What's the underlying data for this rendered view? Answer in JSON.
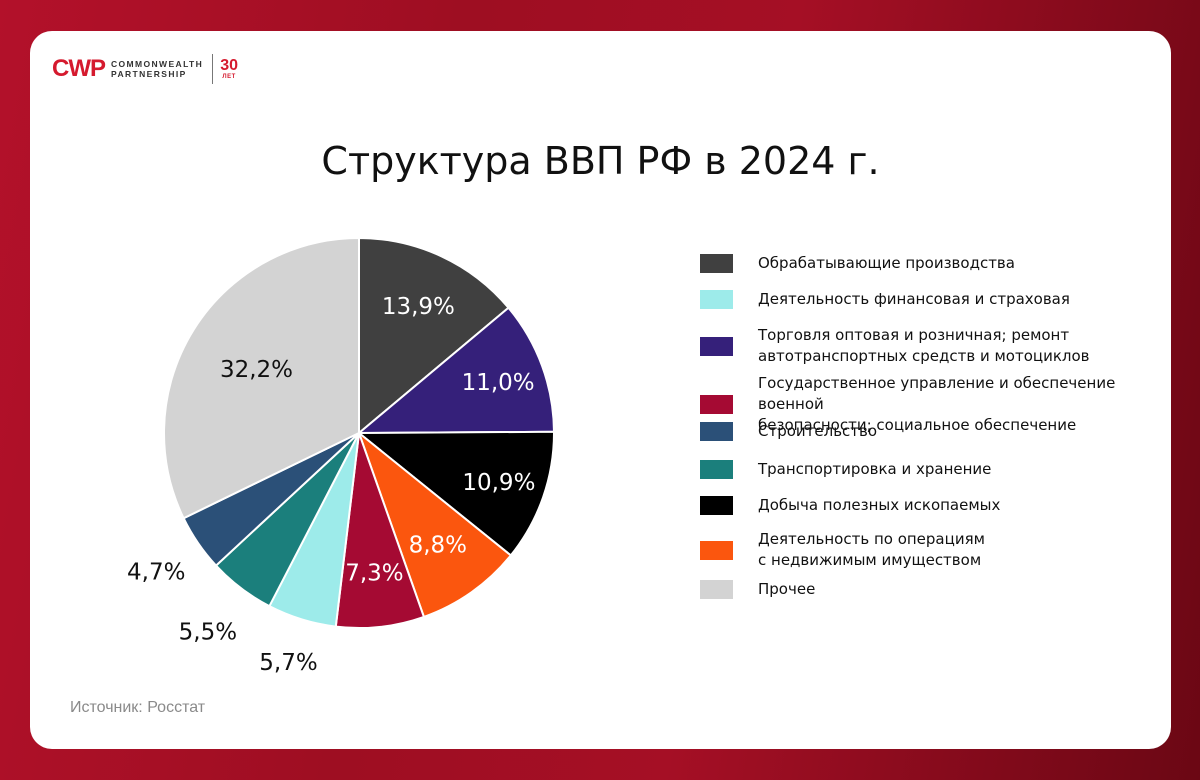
{
  "brand": {
    "mark": "CWP",
    "name_line1": "COMMONWEALTH",
    "name_line2": "PARTNERSHIP",
    "years": "30",
    "years_unit": "ЛЕТ"
  },
  "source": "Источник: Росстат",
  "chart_data": {
    "type": "pie",
    "title": "Структура ВВП РФ в 2024 г.",
    "legend_position": "right",
    "slices": [
      {
        "label": "Обрабатывающие производства",
        "value": 13.9,
        "display": "13,9%",
        "color": "#404040",
        "label_color": "#ffffff"
      },
      {
        "label": "Торговля оптовая и розничная; ремонт\nавтотранспортных средств и мотоциклов",
        "value": 11.0,
        "display": "11,0%",
        "color": "#35207a",
        "label_color": "#ffffff"
      },
      {
        "label": "Добыча полезных ископаемых",
        "value": 10.9,
        "display": "10,9%",
        "color": "#000000",
        "label_color": "#ffffff"
      },
      {
        "label": "Деятельность по операциям\nс недвижимым имуществом",
        "value": 8.8,
        "display": "8,8%",
        "color": "#fb560e",
        "label_color": "#ffffff"
      },
      {
        "label": "Государственное управление и обеспечение военной\nбезопасности; социальное обеспечение",
        "value": 7.3,
        "display": "7,3%",
        "color": "#a50a33",
        "label_color": "#ffffff"
      },
      {
        "label": "Деятельность финансовая и страховая",
        "value": 5.7,
        "display": "5,7%",
        "color": "#9debea",
        "label_color": "#111111"
      },
      {
        "label": "Транспортировка и хранение",
        "value": 5.5,
        "display": "5,5%",
        "color": "#1b7f7c",
        "label_color": "#111111"
      },
      {
        "label": "Строительство",
        "value": 4.7,
        "display": "4,7%",
        "color": "#2b5078",
        "label_color": "#111111"
      },
      {
        "label": "Прочее",
        "value": 32.2,
        "display": "32,2%",
        "color": "#d3d3d3",
        "label_color": "#111111"
      }
    ],
    "legend_order": [
      "Обрабатывающие производства",
      "Деятельность финансовая и страховая",
      "Торговля оптовая и розничная; ремонт\nавтотранспортных средств и мотоциклов",
      "Государственное управление и обеспечение военной\nбезопасности; социальное обеспечение",
      "Строительство",
      "Транспортировка и хранение",
      "Добыча полезных ископаемых",
      "Деятельность по операциям\nс недвижимым имуществом",
      "Прочее"
    ]
  }
}
